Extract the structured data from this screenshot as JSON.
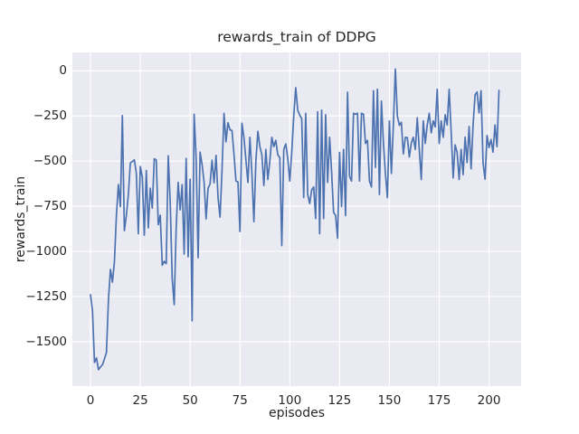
{
  "chart_data": {
    "type": "line",
    "title": "rewards_train of DDPG",
    "xlabel": "episodes",
    "ylabel": "rewards_train",
    "legend": "none",
    "grid": true,
    "x_start": 0,
    "x_step": 1,
    "x_ticks": [
      0,
      25,
      50,
      75,
      100,
      125,
      150,
      175,
      200
    ],
    "x_tick_labels": [
      "0",
      "25",
      "50",
      "75",
      "100",
      "125",
      "150",
      "175",
      "200"
    ],
    "y_ticks": [
      0,
      -250,
      -500,
      -750,
      -1000,
      -1250,
      -1500
    ],
    "y_tick_labels": [
      "0",
      "−250",
      "−500",
      "−750",
      "−1000",
      "−1250",
      "−1500"
    ],
    "xlim": [
      -9.1,
      216.1
    ],
    "ylim": [
      -1746,
      102
    ],
    "style": {
      "line_color": "#4C72B0",
      "plot_background": "#EAEAF2",
      "grid_color": "#FFFFFF",
      "text_color": "#262626",
      "figure_background": "#FFFFFF",
      "line_width": 1.7
    },
    "values": [
      -1240,
      -1330,
      -1615,
      -1590,
      -1655,
      -1640,
      -1628,
      -1595,
      -1560,
      -1268,
      -1100,
      -1170,
      -1058,
      -800,
      -630,
      -752,
      -248,
      -885,
      -800,
      -685,
      -510,
      -502,
      -493,
      -568,
      -902,
      -530,
      -590,
      -910,
      -552,
      -870,
      -650,
      -760,
      -487,
      -493,
      -852,
      -800,
      -1077,
      -1055,
      -1068,
      -470,
      -727,
      -1150,
      -1295,
      -870,
      -618,
      -770,
      -630,
      -1015,
      -485,
      -1030,
      -600,
      -1385,
      -240,
      -480,
      -1035,
      -450,
      -520,
      -615,
      -820,
      -650,
      -627,
      -495,
      -620,
      -468,
      -700,
      -810,
      -550,
      -235,
      -393,
      -287,
      -327,
      -330,
      -460,
      -610,
      -615,
      -890,
      -290,
      -368,
      -495,
      -618,
      -368,
      -568,
      -835,
      -500,
      -335,
      -420,
      -465,
      -635,
      -435,
      -602,
      -500,
      -368,
      -420,
      -385,
      -465,
      -480,
      -968,
      -435,
      -405,
      -485,
      -610,
      -450,
      -250,
      -93,
      -218,
      -245,
      -265,
      -702,
      -235,
      -685,
      -735,
      -660,
      -643,
      -818,
      -227,
      -902,
      -218,
      -818,
      -243,
      -618,
      -368,
      -560,
      -785,
      -800,
      -927,
      -452,
      -752,
      -435,
      -802,
      -118,
      -585,
      -610,
      -235,
      -240,
      -235,
      -610,
      -235,
      -240,
      -402,
      -385,
      -610,
      -643,
      -110,
      -535,
      -102,
      -685,
      -168,
      -400,
      -568,
      -702,
      -277,
      -568,
      -300,
      10,
      -250,
      -302,
      -285,
      -460,
      -368,
      -370,
      -477,
      -400,
      -368,
      -435,
      -260,
      -435,
      -602,
      -277,
      -402,
      -300,
      -235,
      -343,
      -277,
      -310,
      -102,
      -402,
      -277,
      -368,
      -243,
      -300,
      -102,
      -335,
      -593,
      -410,
      -452,
      -602,
      -435,
      -575,
      -367,
      -508,
      -308,
      -542,
      -300,
      -133,
      -117,
      -233,
      -110,
      -508,
      -600,
      -358,
      -425,
      -380,
      -450,
      -300,
      -420,
      -108
    ]
  }
}
